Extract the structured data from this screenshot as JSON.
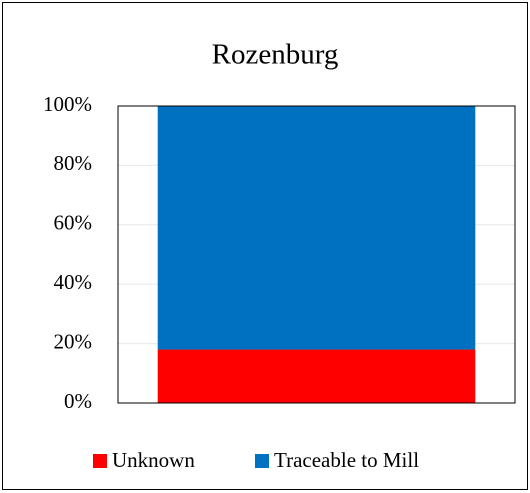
{
  "chart_data": {
    "type": "stacked_bar",
    "title": "Rozenburg",
    "categories": [
      null
    ],
    "series": [
      {
        "name": "Unknown",
        "color": "#ff0000",
        "values": [
          18
        ]
      },
      {
        "name": "Traceable to Mill",
        "color": "#0070c0",
        "values": [
          82
        ]
      }
    ],
    "ylim": [
      0,
      100
    ],
    "yticks": [
      {
        "value": 0,
        "label": "0%"
      },
      {
        "value": 20,
        "label": "20%"
      },
      {
        "value": 40,
        "label": "40%"
      },
      {
        "value": 60,
        "label": "60%"
      },
      {
        "value": 80,
        "label": "80%"
      },
      {
        "value": 100,
        "label": "100%"
      }
    ],
    "grid": true,
    "legend": "bottom"
  }
}
